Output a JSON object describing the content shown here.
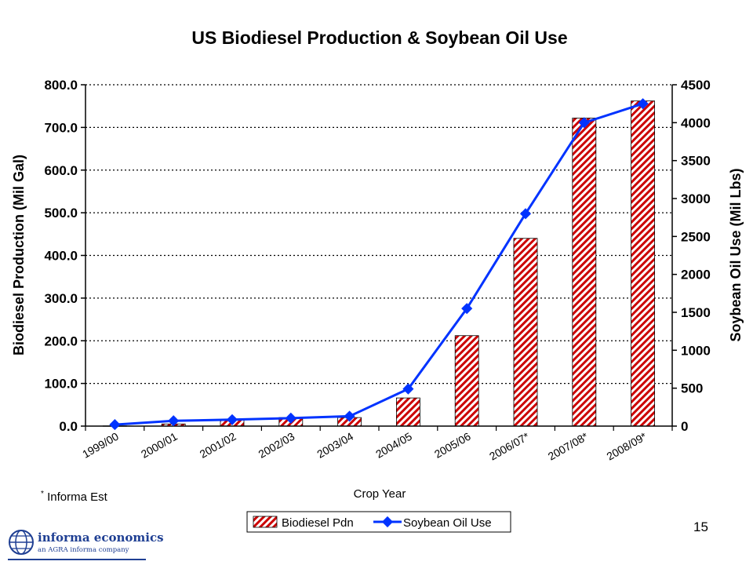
{
  "chart_data": {
    "type": "bar",
    "title": "US Biodiesel Production & Soybean Oil Use",
    "xlabel": "Crop Year",
    "ylabel": "Biodiesel Production (Mil Gal)",
    "y2label": "Soybean Oil Use (Mil Lbs)",
    "categories": [
      "1999/00",
      "2000/01",
      "2001/02",
      "2002/03",
      "2003/04",
      "2004/05",
      "2005/06",
      "2006/07*",
      "2007/08*",
      "2008/09*"
    ],
    "series": [
      {
        "name": "Biodiesel Pdn",
        "type": "bar",
        "axis": "left",
        "values": [
          0.5,
          5,
          15,
          20,
          20,
          66,
          212,
          440,
          722,
          762
        ]
      },
      {
        "name": "Soybean Oil Use",
        "type": "line",
        "axis": "right",
        "values": [
          20,
          70,
          85,
          105,
          130,
          490,
          1550,
          2800,
          4000,
          4250
        ]
      }
    ],
    "ylim": [
      0,
      800
    ],
    "yticks": [
      "0.0",
      "100.0",
      "200.0",
      "300.0",
      "400.0",
      "500.0",
      "600.0",
      "700.0",
      "800.0"
    ],
    "y2lim": [
      0,
      4500
    ],
    "y2ticks": [
      "0",
      "500",
      "1000",
      "1500",
      "2000",
      "2500",
      "3000",
      "3500",
      "4000",
      "4500"
    ],
    "grid": "dotted horizontal",
    "legend": "bottom-center",
    "colors": {
      "bar": "#cc0000",
      "line": "#0033ff"
    }
  },
  "footnote": "Informa Est",
  "footnote_mark": "*",
  "page_number": "15",
  "logo": {
    "name": "informa economics",
    "tagline": "an AGRA informa company"
  }
}
